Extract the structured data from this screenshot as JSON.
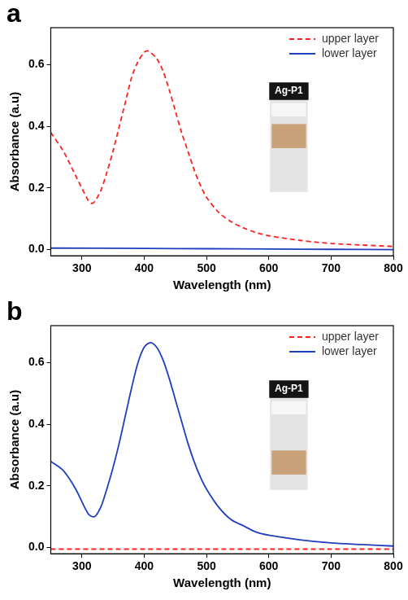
{
  "chart_data": [
    {
      "type": "line",
      "panel": "a",
      "x_label": "Wavelength (nm)",
      "y_label": "Absorbance (a.u)",
      "xlim": [
        250,
        800
      ],
      "xticks": [
        300,
        400,
        500,
        600,
        700,
        800
      ],
      "ylim": [
        -0.02,
        0.72
      ],
      "yticks": [
        {
          "value": 0,
          "label": "0.0"
        },
        0.2,
        0.4,
        0.6
      ],
      "grid": false,
      "legend": "upper right",
      "annotations": [
        "Ag-P1"
      ],
      "series": [
        {
          "name": "upper layer",
          "color": "#ff2020",
          "line_style": "dashed",
          "x": [
            250,
            270,
            290,
            310,
            315,
            320,
            330,
            340,
            350,
            360,
            370,
            380,
            390,
            400,
            405,
            410,
            420,
            430,
            440,
            450,
            460,
            470,
            480,
            490,
            500,
            520,
            540,
            560,
            580,
            600,
            650,
            700,
            750,
            800
          ],
          "values": [
            0.38,
            0.32,
            0.24,
            0.16,
            0.15,
            0.155,
            0.19,
            0.25,
            0.32,
            0.4,
            0.48,
            0.56,
            0.61,
            0.64,
            0.645,
            0.64,
            0.62,
            0.58,
            0.52,
            0.45,
            0.38,
            0.32,
            0.26,
            0.21,
            0.17,
            0.12,
            0.09,
            0.07,
            0.055,
            0.045,
            0.03,
            0.02,
            0.015,
            0.01
          ]
        },
        {
          "name": "lower layer",
          "color": "#1f3fbf",
          "line_style": "solid",
          "x": [
            250,
            400,
            500,
            600,
            700,
            800
          ],
          "values": [
            0.005,
            0.004,
            0.003,
            0.002,
            0.001,
            0.0
          ]
        }
      ]
    },
    {
      "type": "line",
      "panel": "b",
      "x_label": "Wavelength (nm)",
      "y_label": "Absorbance (a.u)",
      "xlim": [
        250,
        800
      ],
      "xticks": [
        300,
        400,
        500,
        600,
        700,
        800
      ],
      "ylim": [
        -0.02,
        0.72
      ],
      "yticks": [
        {
          "value": 0,
          "label": "0.0"
        },
        0.2,
        0.4,
        0.6
      ],
      "grid": false,
      "legend": "upper right",
      "annotations": [
        "Ag-P1"
      ],
      "series": [
        {
          "name": "upper layer",
          "color": "#ff2020",
          "line_style": "dashed",
          "x": [
            250,
            400,
            500,
            600,
            700,
            800
          ],
          "values": [
            -0.005,
            -0.005,
            -0.005,
            -0.005,
            -0.005,
            -0.005
          ]
        },
        {
          "name": "lower layer",
          "color": "#1f3fbf",
          "line_style": "solid",
          "x": [
            250,
            270,
            290,
            310,
            320,
            330,
            340,
            350,
            360,
            370,
            380,
            390,
            400,
            410,
            420,
            430,
            440,
            450,
            460,
            470,
            480,
            490,
            500,
            520,
            540,
            560,
            580,
            600,
            650,
            700,
            750,
            800
          ],
          "values": [
            0.28,
            0.25,
            0.19,
            0.11,
            0.1,
            0.13,
            0.19,
            0.26,
            0.34,
            0.43,
            0.52,
            0.6,
            0.65,
            0.665,
            0.65,
            0.61,
            0.55,
            0.48,
            0.41,
            0.34,
            0.28,
            0.23,
            0.19,
            0.13,
            0.09,
            0.07,
            0.05,
            0.04,
            0.025,
            0.015,
            0.01,
            0.005
          ]
        }
      ]
    }
  ]
}
